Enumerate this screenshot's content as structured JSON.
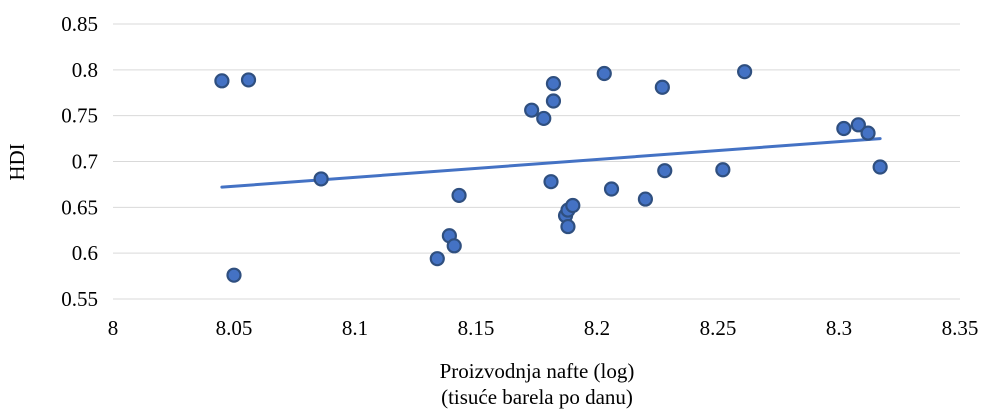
{
  "chart_data": {
    "type": "scatter",
    "title": "",
    "xlabel_lines": [
      "Proizvodnja nafte (log)",
      "(tisuće barela po danu)"
    ],
    "ylabel": "HDI",
    "xlim": [
      8,
      8.35
    ],
    "ylim": [
      0.55,
      0.85
    ],
    "x_ticks": [
      "8",
      "8.05",
      "8.1",
      "8.15",
      "8.2",
      "8.25",
      "8.3",
      "8.35"
    ],
    "x_tick_values": [
      8,
      8.05,
      8.1,
      8.15,
      8.2,
      8.25,
      8.3,
      8.35
    ],
    "y_ticks": [
      "0.55",
      "0.6",
      "0.65",
      "0.7",
      "0.75",
      "0.8",
      "0.85"
    ],
    "y_tick_values": [
      0.55,
      0.6,
      0.65,
      0.7,
      0.75,
      0.8,
      0.85
    ],
    "grid": "horizontal",
    "legend": "none",
    "series": [
      {
        "points": [
          {
            "x": 8.045,
            "y": 0.788
          },
          {
            "x": 8.056,
            "y": 0.789
          },
          {
            "x": 8.05,
            "y": 0.576
          },
          {
            "x": 8.086,
            "y": 0.681
          },
          {
            "x": 8.134,
            "y": 0.594
          },
          {
            "x": 8.139,
            "y": 0.619
          },
          {
            "x": 8.141,
            "y": 0.608
          },
          {
            "x": 8.143,
            "y": 0.663
          },
          {
            "x": 8.173,
            "y": 0.756
          },
          {
            "x": 8.178,
            "y": 0.747
          },
          {
            "x": 8.181,
            "y": 0.678
          },
          {
            "x": 8.182,
            "y": 0.785
          },
          {
            "x": 8.182,
            "y": 0.766
          },
          {
            "x": 8.187,
            "y": 0.641
          },
          {
            "x": 8.188,
            "y": 0.647
          },
          {
            "x": 8.19,
            "y": 0.652
          },
          {
            "x": 8.188,
            "y": 0.629
          },
          {
            "x": 8.203,
            "y": 0.796
          },
          {
            "x": 8.206,
            "y": 0.67
          },
          {
            "x": 8.22,
            "y": 0.659
          },
          {
            "x": 8.227,
            "y": 0.781
          },
          {
            "x": 8.228,
            "y": 0.69
          },
          {
            "x": 8.252,
            "y": 0.691
          },
          {
            "x": 8.261,
            "y": 0.798
          },
          {
            "x": 8.302,
            "y": 0.736
          },
          {
            "x": 8.308,
            "y": 0.74
          },
          {
            "x": 8.312,
            "y": 0.731
          },
          {
            "x": 8.317,
            "y": 0.694
          }
        ],
        "marker_color": "#4472c4",
        "marker_edge_color": "#2f4f7f"
      }
    ],
    "trendline": {
      "x": [
        8.045,
        8.317
      ],
      "y": [
        0.672,
        0.725
      ],
      "color": "#4472c4"
    },
    "colors": {
      "gridline": "#d9d9d9",
      "text": "#000000"
    }
  }
}
